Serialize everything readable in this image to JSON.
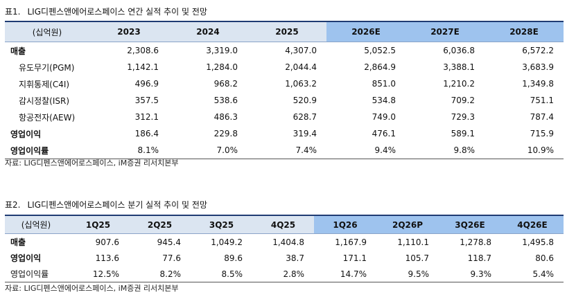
{
  "table1": {
    "number": "표1.",
    "title": "LIG디펜스앤에어로스페이스 연간 실적 추이 및 전망",
    "header": [
      "(십억원)",
      "2023",
      "2024",
      "2025",
      "2026E",
      "2027E",
      "2028E"
    ],
    "rows": [
      {
        "label": "매출",
        "values": [
          "2,308.6",
          "3,319.0",
          "4,307.0",
          "5,052.5",
          "6,036.8",
          "6,572.2"
        ]
      },
      {
        "label": "유도무기(PGM)",
        "values": [
          "1,142.1",
          "1,284.0",
          "2,044.4",
          "2,864.9",
          "3,388.1",
          "3,683.9"
        ]
      },
      {
        "label": "지휘통제(C4I)",
        "values": [
          "496.9",
          "968.2",
          "1,063.2",
          "851.0",
          "1,210.2",
          "1,349.8"
        ]
      },
      {
        "label": "감시정찰(ISR)",
        "values": [
          "357.5",
          "538.6",
          "520.9",
          "534.8",
          "709.2",
          "751.1"
        ]
      },
      {
        "label": "항공전자(AEW)",
        "values": [
          "312.1",
          "486.3",
          "628.7",
          "749.0",
          "729.3",
          "787.4"
        ]
      },
      {
        "label": "영업이익",
        "values": [
          "186.4",
          "229.8",
          "319.4",
          "476.1",
          "589.1",
          "715.9"
        ]
      },
      {
        "label": "영업이익률",
        "values": [
          "8.1%",
          "7.0%",
          "7.4%",
          "9.4%",
          "9.8%",
          "10.9%"
        ]
      }
    ],
    "source": "자료: LIG디펜스앤에어로스페이스, iM증권 리서치본부"
  },
  "table2": {
    "number": "표2.",
    "title": "LIG디펜스앤에어로스페이스 분기 실적 추이 및 전망",
    "header": [
      "(십억원)",
      "1Q25",
      "2Q25",
      "3Q25",
      "4Q25",
      "1Q26",
      "2Q26P",
      "3Q26E",
      "4Q26E"
    ],
    "rows": [
      {
        "label": "매출",
        "values": [
          "907.6",
          "945.4",
          "1,049.2",
          "1,404.8",
          "1,167.9",
          "1,110.1",
          "1,278.8",
          "1,495.8"
        ]
      },
      {
        "label": "영업이익",
        "values": [
          "113.6",
          "77.6",
          "89.6",
          "38.7",
          "171.1",
          "105.7",
          "118.7",
          "80.6"
        ]
      },
      {
        "label": "영업이익률",
        "values": [
          "12.5%",
          "8.2%",
          "8.5%",
          "2.8%",
          "14.7%",
          "9.5%",
          "9.3%",
          "5.4%"
        ]
      }
    ],
    "source": "자료: LIG디펜스앤에어로스페이스, iM증권 리서치본부"
  },
  "colors": {
    "header_bg": "#dbe5f1",
    "estimate_header_bg": "#9ec3ee",
    "header_top_rule": "#1f3b73"
  }
}
